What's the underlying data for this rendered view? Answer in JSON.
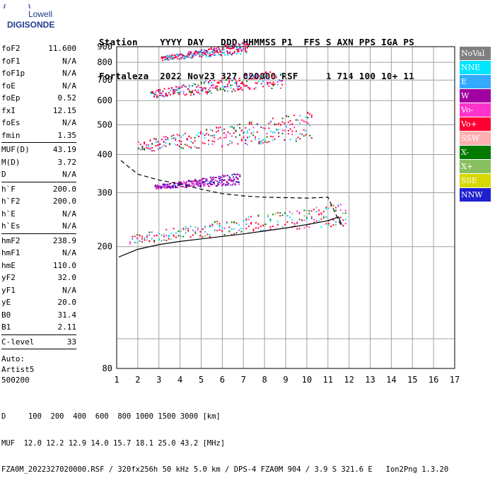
{
  "logo": {
    "line1": "Lowell",
    "line2": "DIGISONDE",
    "accent": "#1e3c8c"
  },
  "header": {
    "row1": "Station    YYYY DAY   DDD HHMMSS P1  FFS S AXN PPS IGA PS",
    "row2": "Fortaleza  2022 Nov23 327 020000 RSF     1 714 100 10+ 11"
  },
  "params": {
    "group1": [
      {
        "label": "foF2",
        "value": "11.600"
      },
      {
        "label": "foF1",
        "value": "N/A"
      },
      {
        "label": "foF1p",
        "value": "N/A"
      },
      {
        "label": "foE",
        "value": "N/A"
      },
      {
        "label": "foEp",
        "value": "0.52"
      },
      {
        "label": "fxI",
        "value": "12.15"
      },
      {
        "label": "foEs",
        "value": "N/A"
      },
      {
        "label": "fmin",
        "value": "1.35"
      }
    ],
    "group2": [
      {
        "label": "MUF(D)",
        "value": "43.19"
      },
      {
        "label": "M(D)",
        "value": "3.72"
      },
      {
        "label": "D",
        "value": "N/A"
      }
    ],
    "group3": [
      {
        "label": "h`F",
        "value": "200.0"
      },
      {
        "label": "h`F2",
        "value": "200.0"
      },
      {
        "label": "h`E",
        "value": "N/A"
      },
      {
        "label": "h`Es",
        "value": "N/A"
      }
    ],
    "group4": [
      {
        "label": "hmF2",
        "value": "238.9"
      },
      {
        "label": "hmF1",
        "value": "N/A"
      },
      {
        "label": "hmE",
        "value": "110.0"
      },
      {
        "label": "yF2",
        "value": "32.0"
      },
      {
        "label": "yF1",
        "value": "N/A"
      },
      {
        "label": "yE",
        "value": "20.0"
      },
      {
        "label": "B0",
        "value": "31.4"
      },
      {
        "label": "B1",
        "value": "2.11"
      }
    ],
    "group5": [
      {
        "label": "C-level",
        "value": "33"
      }
    ],
    "group6": [
      "Auto:",
      "Artist5",
      "500200"
    ]
  },
  "legend": [
    {
      "label": "NoVal",
      "color": "#808080"
    },
    {
      "label": "NNE",
      "color": "#00e5ff"
    },
    {
      "label": "E",
      "color": "#33aaff"
    },
    {
      "label": "W",
      "color": "#a0009f"
    },
    {
      "label": "Vo-",
      "color": "#ff33cc"
    },
    {
      "label": "Vo+",
      "color": "#ff0033"
    },
    {
      "label": "SSW",
      "color": "#ffb0b0"
    },
    {
      "label": "X-",
      "color": "#007a00"
    },
    {
      "label": "X+",
      "color": "#88c060"
    },
    {
      "label": "SSE",
      "color": "#d8d800"
    },
    {
      "label": "NNW",
      "color": "#2020d0"
    }
  ],
  "footer": {
    "line1": "D     100  200  400  600  800 1000 1500 3000 [km]",
    "line2": "MUF  12.0 12.2 12.9 14.0 15.7 18.1 25.0 43.2 [MHz]",
    "line3": "FZA0M_2022327020000.RSF / 320fx256h 50 kHz 5.0 km / DPS-4 FZA0M 904 / 3.9 S 321.6 E   Ion2Png 1.3.20"
  },
  "chart_data": {
    "type": "scatter",
    "title": "",
    "xlabel": "",
    "ylabel": "",
    "xlim": [
      1,
      17
    ],
    "ylim": [
      80,
      900
    ],
    "x_ticks": [
      1,
      2,
      3,
      4,
      5,
      6,
      7,
      8,
      9,
      10,
      11,
      12,
      13,
      14,
      15,
      16,
      17
    ],
    "y_ticks": [
      80,
      200,
      300,
      400,
      500,
      600,
      700,
      800,
      900
    ],
    "grid": true,
    "scale_y": "log",
    "legend_position": "right",
    "bands": [
      {
        "name": "1st hop (F2 trace)",
        "x_start": 1.6,
        "x_end": 11.8,
        "h_start": 205,
        "h_end": 235,
        "spread": 45,
        "dominant": "Vo+",
        "secondary": [
          "E",
          "NNE",
          "X+",
          "Vo-",
          "X-"
        ]
      },
      {
        "name": "1st hop (W patch)",
        "x_start": 2.8,
        "x_end": 6.8,
        "h_start": 310,
        "h_end": 320,
        "spread": 30,
        "dominant": "W",
        "secondary": [
          "Vo-",
          "NNW"
        ]
      },
      {
        "name": "2nd hop",
        "x_start": 2.0,
        "x_end": 10.2,
        "h_start": 410,
        "h_end": 445,
        "spread": 110,
        "dominant": "Vo+",
        "secondary": [
          "NNE",
          "E",
          "W",
          "X-",
          "Vo-"
        ]
      },
      {
        "name": "3rd hop",
        "x_start": 2.6,
        "x_end": 8.8,
        "h_start": 615,
        "h_end": 660,
        "spread": 110,
        "dominant": "Vo+",
        "secondary": [
          "NNE",
          "E",
          "W",
          "X-",
          "Vo-"
        ]
      },
      {
        "name": "4th hop",
        "x_start": 3.1,
        "x_end": 7.2,
        "h_start": 815,
        "h_end": 860,
        "spread": 80,
        "dominant": "Vo+",
        "secondary": [
          "NNE",
          "E",
          "W"
        ]
      }
    ],
    "profile_solid": {
      "x": [
        1.1,
        2,
        3,
        4,
        5,
        6,
        7,
        8,
        9,
        10,
        11,
        11.5,
        11.65
      ],
      "y": [
        185,
        196,
        203,
        208,
        212,
        216,
        220,
        225,
        230,
        236,
        243,
        250,
        236
      ]
    },
    "profile_dashed": {
      "x": [
        1.2,
        2,
        3,
        4,
        5,
        6,
        7,
        8,
        9,
        10,
        11,
        11.6
      ],
      "y": [
        382,
        345,
        330,
        320,
        308,
        298,
        293,
        290,
        289,
        288,
        290,
        236
      ]
    }
  }
}
